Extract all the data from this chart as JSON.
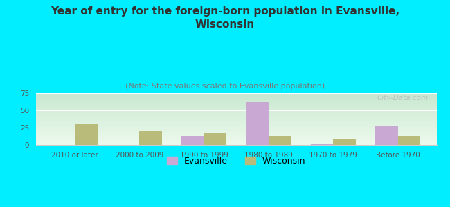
{
  "title": "Year of entry for the foreign-born population in Evansville,\nWisconsin",
  "subtitle": "(Note: State values scaled to Evansville population)",
  "categories": [
    "2010 or later",
    "2000 to 2009",
    "1990 to 1999",
    "1980 to 1989",
    "1970 to 1979",
    "Before 1970"
  ],
  "evansville_values": [
    0,
    0,
    13,
    62,
    1,
    27
  ],
  "wisconsin_values": [
    30,
    20,
    17,
    13,
    8,
    13
  ],
  "evansville_color": "#c9a8d4",
  "wisconsin_color": "#b8bb7a",
  "background_color": "#00eeff",
  "plot_bg_top": "#c8e8d0",
  "plot_bg_bottom": "#edfaed",
  "ylim": [
    0,
    75
  ],
  "yticks": [
    0,
    25,
    50,
    75
  ],
  "bar_width": 0.35,
  "title_fontsize": 11,
  "subtitle_fontsize": 8,
  "tick_fontsize": 7.5,
  "legend_fontsize": 9,
  "watermark": "City-Data.com"
}
